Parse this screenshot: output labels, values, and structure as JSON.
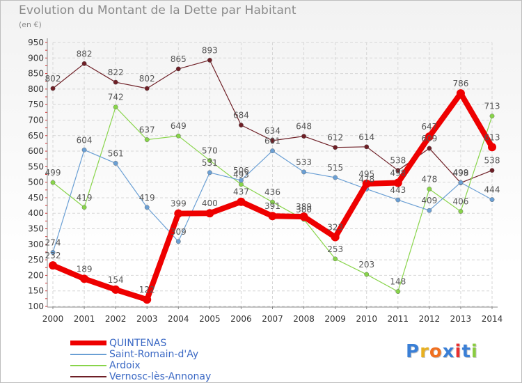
{
  "chart_data": {
    "type": "line",
    "title": "Evolution du Montant de la Dette par Habitant",
    "subtitle": "(en €)",
    "x": [
      2000,
      2001,
      2002,
      2003,
      2004,
      2005,
      2006,
      2007,
      2008,
      2009,
      2010,
      2011,
      2012,
      2013,
      2014
    ],
    "ylim": [
      100,
      950
    ],
    "yticks": [
      100,
      150,
      200,
      250,
      300,
      350,
      400,
      450,
      500,
      550,
      600,
      650,
      700,
      750,
      800,
      850,
      900,
      950
    ],
    "grid": true,
    "legend_position": "bottom-left",
    "series": [
      {
        "name": "QUINTENAS",
        "color": "#ee0000",
        "values": [
          232,
          189,
          154,
          122,
          399,
          400,
          437,
          391,
          389,
          323,
          495,
          498,
          647,
          786,
          613
        ],
        "labels": [
          "232",
          "189",
          "154",
          "122",
          "399",
          "400",
          "437",
          "391",
          "389",
          "323",
          "495",
          "498",
          "647",
          "786",
          "613"
        ]
      },
      {
        "name": "Saint-Romain-d'Ay",
        "color": "#6a9fd4",
        "values": [
          274,
          604,
          561,
          419,
          309,
          531,
          506,
          601,
          533,
          515,
          478,
          443,
          409,
          499,
          444
        ],
        "labels": [
          "274",
          "604",
          "561",
          "419",
          "309",
          "531",
          "506",
          "601",
          "533",
          "515",
          "478",
          "443",
          "409",
          "499",
          "444"
        ]
      },
      {
        "name": "Ardoix",
        "color": "#88d44a",
        "values": [
          499,
          419,
          742,
          637,
          649,
          570,
          493,
          436,
          380,
          253,
          203,
          148,
          478,
          406,
          713
        ],
        "labels": [
          "499",
          "419",
          "742",
          "637",
          "649",
          "570",
          "493",
          "436",
          "380",
          "253",
          "203",
          "148",
          "478",
          "406",
          "713"
        ]
      },
      {
        "name": "Vernosc-lès-Annonay",
        "color": "#6e1f26",
        "values": [
          802,
          882,
          822,
          802,
          865,
          893,
          684,
          634,
          648,
          612,
          614,
          538,
          609,
          498,
          538
        ],
        "labels": [
          "802",
          "882",
          "822",
          "802",
          "865",
          "893",
          "684",
          "634",
          "648",
          "612",
          "614",
          "538",
          "609",
          "498",
          "538"
        ]
      }
    ]
  },
  "branding": {
    "text": "Proxiti",
    "colors": [
      "#3a7fd6",
      "#e8b020",
      "#f07020",
      "#3a7fd6",
      "#e83030",
      "#3a7fd6",
      "#8acc40"
    ]
  }
}
